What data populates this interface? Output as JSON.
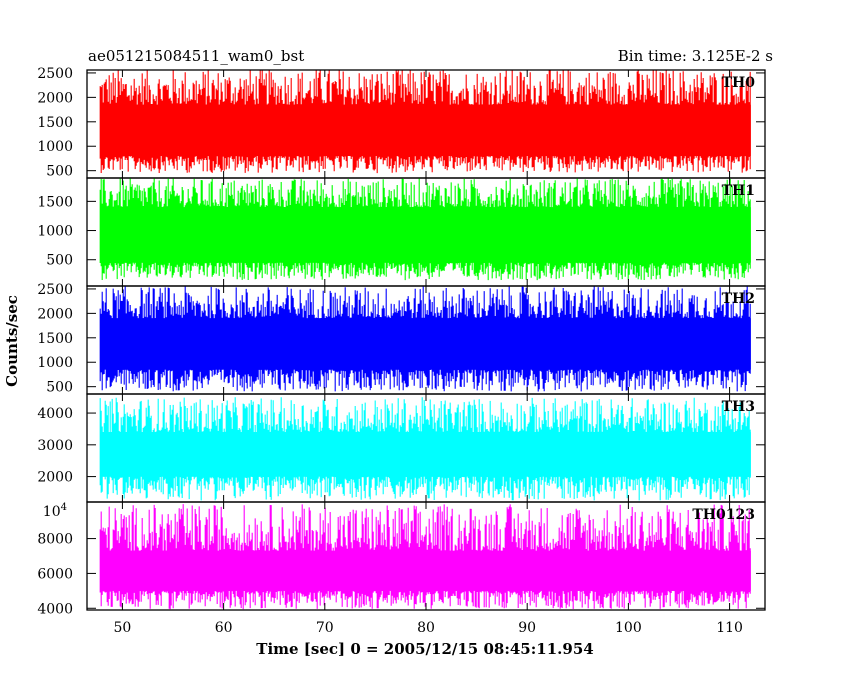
{
  "chart_data": {
    "type": "line",
    "title": "ae051215084511_wam0_bst",
    "subtitle": "Bin time: 3.125E-2 s",
    "xlabel": "Time [sec] 0 = 2005/12/15 08:45:11.954",
    "ylabel": "Counts/sec",
    "xlim": [
      46.5,
      113.5
    ],
    "x_ticks": [
      50,
      60,
      70,
      80,
      90,
      100,
      110
    ],
    "x_tick_labels": [
      "50",
      "60",
      "70",
      "80",
      "90",
      "100",
      "110"
    ],
    "data_x_range": [
      47.8,
      112.1
    ],
    "bin_time": 0.03125,
    "grid": false,
    "panels": [
      {
        "series_name": "TH0",
        "color": "#ff0000",
        "ylim": [
          350,
          2560
        ],
        "y_ticks": [
          500,
          1000,
          1500,
          2000,
          2500
        ],
        "y_tick_labels": [
          "500",
          "1000",
          "1500",
          "2000",
          "2500"
        ],
        "mean": 1300,
        "band_low": 800,
        "band_high": 1850,
        "min": 450,
        "max": 2600
      },
      {
        "series_name": "TH1",
        "color": "#00ff00",
        "ylim": [
          50,
          1900
        ],
        "y_ticks": [
          500,
          1000,
          1500
        ],
        "y_tick_labels": [
          "500",
          "1000",
          "1500"
        ],
        "mean": 900,
        "band_low": 450,
        "band_high": 1400,
        "min": 150,
        "max": 1900
      },
      {
        "series_name": "TH2",
        "color": "#0000ff",
        "ylim": [
          350,
          2560
        ],
        "y_ticks": [
          500,
          1000,
          1500,
          2000,
          2500
        ],
        "y_tick_labels": [
          "500",
          "1000",
          "1500",
          "2000",
          "2500"
        ],
        "mean": 1350,
        "band_low": 850,
        "band_high": 1900,
        "min": 400,
        "max": 2560
      },
      {
        "series_name": "TH3",
        "color": "#00ffff",
        "ylim": [
          1200,
          4600
        ],
        "y_ticks": [
          2000,
          3000,
          4000
        ],
        "y_tick_labels": [
          "2000",
          "3000",
          "4000"
        ],
        "mean": 2650,
        "band_low": 2000,
        "band_high": 3400,
        "min": 1250,
        "max": 4500
      },
      {
        "series_name": "TH0123",
        "color": "#ff00ff",
        "ylim": [
          3900,
          10100
        ],
        "y_ticks": [
          4000,
          6000,
          8000
        ],
        "y_tick_labels": [
          "4000",
          "6000",
          "8000"
        ],
        "top_tick_label": "10",
        "top_tick_exponent": "4",
        "mean": 6000,
        "band_low": 5000,
        "band_high": 7300,
        "min": 3950,
        "max": 10000
      }
    ]
  }
}
